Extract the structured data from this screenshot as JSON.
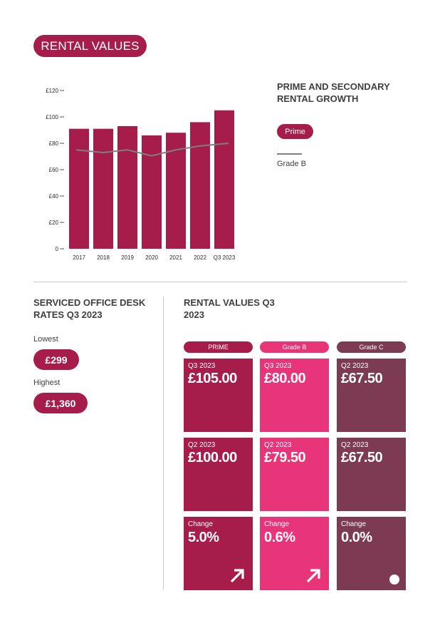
{
  "colors": {
    "prime": "#a61d4b",
    "grade_b": "#e8357a",
    "grade_c": "#7d3a53",
    "line_grade_b": "#7f7f7f"
  },
  "header": {
    "title": "RENTAL VALUES"
  },
  "chart_legend": {
    "title": "PRIME AND SECONDARY RENTAL GROWTH",
    "prime_label": "Prime",
    "grade_b_label": "Grade B"
  },
  "chart_data": {
    "type": "bar",
    "categories": [
      "2017",
      "2018",
      "2019",
      "2020",
      "2021",
      "2022",
      "Q3 2023"
    ],
    "series": [
      {
        "name": "Prime",
        "type": "bar",
        "values": [
          91,
          91,
          93,
          86,
          88,
          96,
          105
        ]
      },
      {
        "name": "Grade B",
        "type": "line",
        "values": [
          75,
          73,
          75,
          70.5,
          75,
          78,
          80
        ]
      }
    ],
    "ylim": [
      0,
      120
    ],
    "yticks": [
      "£120",
      "£100",
      "£80",
      "£60",
      "£40",
      "£20",
      "0"
    ],
    "ytick_values": [
      120,
      100,
      80,
      60,
      40,
      20,
      0
    ]
  },
  "desk_rates": {
    "title": "SERVICED OFFICE DESK RATES Q3 2023",
    "lowest_label": "Lowest",
    "lowest_value": "£299",
    "highest_label": "Highest",
    "highest_value": "£1,360"
  },
  "rental_values": {
    "title": "RENTAL VALUES Q3 2023",
    "columns": [
      {
        "header": "PRIME",
        "rows": [
          {
            "label": "Q3 2023",
            "value": "£105.00"
          },
          {
            "label": "Q2 2023",
            "value": "£100.00"
          },
          {
            "label": "Change",
            "value": "5.0%",
            "icon": "arrow-up-right-icon"
          }
        ]
      },
      {
        "header": "Grade B",
        "rows": [
          {
            "label": "Q3 2023",
            "value": "£80.00"
          },
          {
            "label": "Q2 2023",
            "value": "£79.50"
          },
          {
            "label": "Change",
            "value": "0.6%",
            "icon": "arrow-up-right-icon"
          }
        ]
      },
      {
        "header": "Grade C",
        "rows": [
          {
            "label": "Q2 2023",
            "value": "£67.50"
          },
          {
            "label": "Q2 2023",
            "value": "£67.50"
          },
          {
            "label": "Change",
            "value": "0.0%",
            "icon": "dot-icon"
          }
        ]
      }
    ]
  }
}
